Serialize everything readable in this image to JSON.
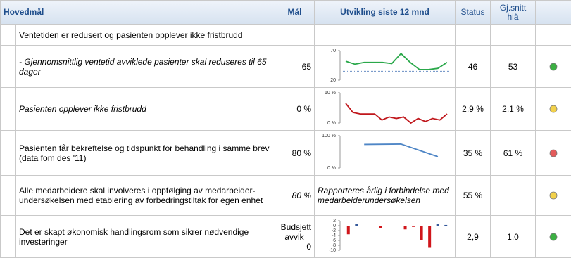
{
  "header": {
    "goal": "Hovedmål",
    "target": "Mål",
    "trend": "Utvikling siste 12 mnd",
    "status": "Status",
    "avg": "Gj.snitt\nhiå"
  },
  "rows": [
    {
      "goal": "Ventetiden er redusert og pasienten opplever ikke fristbrudd"
    },
    {
      "goal": " - Gjennomsnittlig ventetid avviklede pasienter skal reduseres  til 65 dager",
      "italic": true,
      "target": "65",
      "trend": {
        "type": "line",
        "values": [
          52,
          47,
          50,
          50,
          50,
          48,
          65,
          50,
          38,
          38,
          40,
          50
        ],
        "ylim": [
          20,
          70
        ],
        "yticks": [
          70,
          20
        ],
        "reference": 35,
        "color": "#2aa84a"
      },
      "status": "46",
      "avg": "53",
      "indicator": "#3cb043"
    },
    {
      "goal": "Pasienten opplever ikke fristbrudd",
      "italic": true,
      "target": "0 %",
      "trend": {
        "type": "line",
        "values": [
          6.5,
          3.5,
          3,
          3,
          3,
          1,
          2,
          1.5,
          2,
          0,
          1.5,
          0.5,
          1.5,
          1,
          3
        ],
        "ylim": [
          0,
          10
        ],
        "yticks": [
          {
            "value": 10,
            "label": "10 %"
          },
          {
            "value": 0,
            "label": "0 %"
          }
        ],
        "color": "#c0171c"
      },
      "status": "2,9 %",
      "avg": "2,1 %",
      "indicator": "#f2d14b"
    },
    {
      "goal": "Pasienten får bekreftelse og tidspunkt for behandling i samme brev (data fom des '11)",
      "target": "80 %",
      "trend": {
        "type": "line",
        "x": [
          2,
          6,
          10
        ],
        "xlim": [
          0,
          11
        ],
        "values": [
          73,
          74,
          35
        ],
        "ylim": [
          0,
          100
        ],
        "yticks": [
          {
            "value": 100,
            "label": "100 %"
          },
          {
            "value": 0,
            "label": "0 %"
          }
        ],
        "color": "#4f86c6"
      },
      "status": "35 %",
      "avg": "61 %",
      "indicator": "#e35b5b"
    },
    {
      "goal": "Alle medarbeidere skal involveres i oppfølging av medarbeider-undersøkelsen med etablering av forbedringstiltak for egen enhet",
      "target": "80 %",
      "target_italic": true,
      "trend": "Rapporteres årlig i forbindelse med medarbeiderundersøkelsen",
      "status": "55 %",
      "indicator": "#f2d14b"
    },
    {
      "goal": "Det er skapt økonomisk handlingsrom som sikrer nødvendige investeringer",
      "target": "Budsjett avvik = 0",
      "trend": {
        "type": "bar",
        "values": [
          -3.5,
          0.6,
          0,
          0,
          -1,
          0,
          0,
          -1.5,
          -0.5,
          -6,
          -9,
          0.8,
          0.3
        ],
        "ylim": [
          -10,
          2
        ],
        "yticks": [
          2,
          0,
          -2,
          -4,
          -6,
          -8,
          -10
        ],
        "positive_color": "#34589a",
        "negative_color": "#d0161b"
      },
      "status": "2,9",
      "avg": "1,0",
      "indicator": "#3cb043"
    }
  ]
}
